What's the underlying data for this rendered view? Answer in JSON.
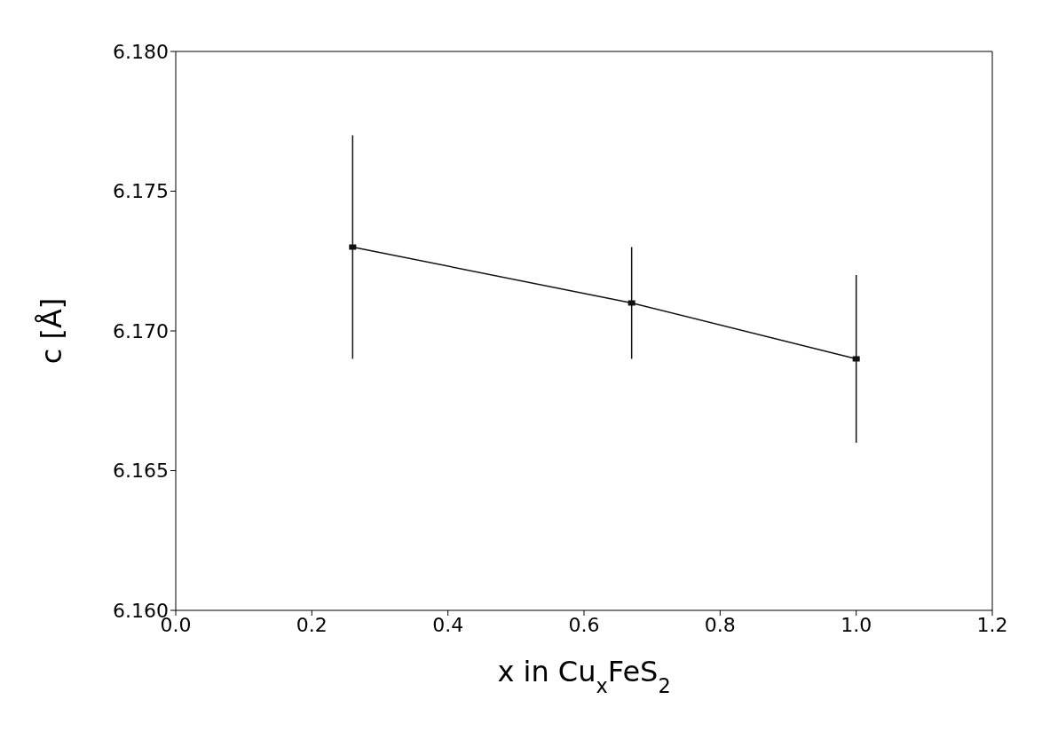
{
  "chart_data": {
    "type": "line",
    "xlabel": "x in Cu$_{x}$FeS$_{2}$",
    "ylabel": "c [Å]",
    "x": [
      0.26,
      0.67,
      1.0
    ],
    "series": [
      {
        "color": "#111111",
        "values": [
          6.173,
          6.171,
          6.169
        ],
        "errors": [
          0.004,
          0.002,
          0.003
        ]
      }
    ],
    "xlim": [
      0,
      1.2
    ],
    "ylim": [
      6.16,
      6.18
    ],
    "xticks": [
      {
        "value": 0,
        "label": "0.0"
      },
      {
        "value": 0.2,
        "label": "0.2"
      },
      {
        "value": 0.4,
        "label": "0.4"
      },
      {
        "value": 0.6,
        "label": "0.6"
      },
      {
        "value": 0.8,
        "label": "0.8"
      },
      {
        "value": 1.0,
        "label": "1.0"
      },
      {
        "value": 1.2,
        "label": "1.2"
      }
    ],
    "yticks": [
      {
        "value": 6.16,
        "label": "6.160"
      },
      {
        "value": 6.165,
        "label": "6.165"
      },
      {
        "value": 6.17,
        "label": "6.170"
      },
      {
        "value": 6.175,
        "label": "6.175"
      },
      {
        "value": 6.18,
        "label": "6.180"
      }
    ],
    "marker": "square",
    "line_style": "solid",
    "grid": false
  }
}
